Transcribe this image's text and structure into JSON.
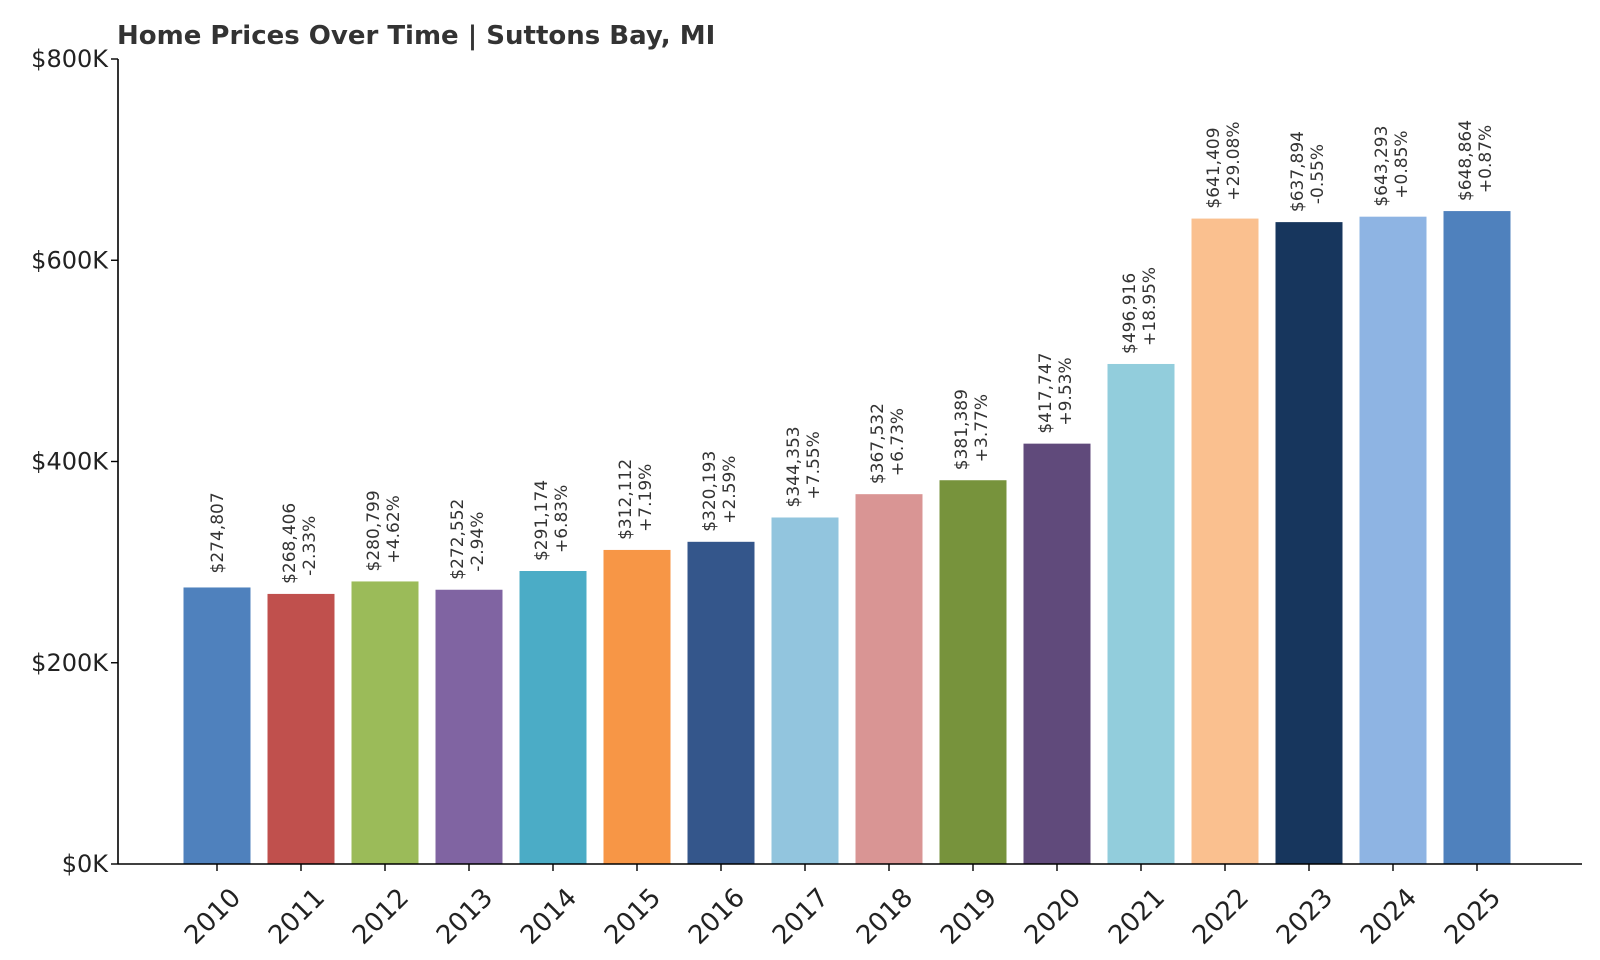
{
  "chart_data": {
    "type": "bar",
    "title": "Home Prices Over Time | Suttons Bay, MI",
    "xlabel": "",
    "ylabel": "",
    "ylim": [
      0,
      800000
    ],
    "y_ticks": [
      0,
      200000,
      400000,
      600000,
      800000
    ],
    "y_tick_labels": [
      "$0K",
      "$200K",
      "$400K",
      "$600K",
      "$800K"
    ],
    "grid": false,
    "legend": "none",
    "categories": [
      "2010",
      "2011",
      "2012",
      "2013",
      "2014",
      "2015",
      "2016",
      "2017",
      "2018",
      "2019",
      "2020",
      "2021",
      "2022",
      "2023",
      "2024",
      "2025"
    ],
    "values": [
      274807,
      268406,
      280799,
      272552,
      291174,
      312112,
      320193,
      344353,
      367532,
      381389,
      417747,
      496916,
      641409,
      637894,
      643293,
      648864
    ],
    "value_labels": [
      "$274,807",
      "$268,406",
      "$280,799",
      "$272,552",
      "$291,174",
      "$312,112",
      "$320,193",
      "$344,353",
      "$367,532",
      "$381,389",
      "$417,747",
      "$496,916",
      "$641,409",
      "$637,894",
      "$643,293",
      "$648,864"
    ],
    "change_labels": [
      "",
      "-2.33%",
      "+4.62%",
      "-2.94%",
      "+6.83%",
      "+7.19%",
      "+2.59%",
      "+7.55%",
      "+6.73%",
      "+3.77%",
      "+9.53%",
      "+18.95%",
      "+29.08%",
      "-0.55%",
      "+0.85%",
      "+0.87%"
    ],
    "colors": [
      "#4f81bd",
      "#c0504d",
      "#9bbb59",
      "#8064a2",
      "#4bacc6",
      "#f79646",
      "#34568b",
      "#92c5de",
      "#d99594",
      "#77933c",
      "#604a7b",
      "#92cddc",
      "#fac08f",
      "#17365d",
      "#8eb4e3",
      "#4f81bd"
    ]
  }
}
